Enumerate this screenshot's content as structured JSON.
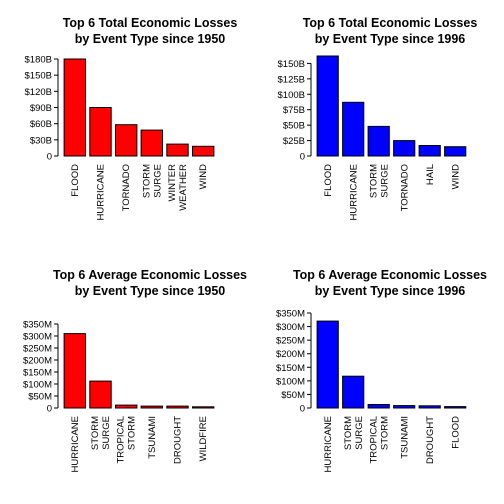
{
  "chart_data": [
    {
      "type": "bar",
      "title": [
        "Top 6 Total Economic Losses",
        "by Event Type since 1950"
      ],
      "categories": [
        [
          "FLOOD"
        ],
        [
          "HURRICANE"
        ],
        [
          "TORNADO"
        ],
        [
          "STORM",
          "SURGE"
        ],
        [
          "WINTER",
          "WEATHER"
        ],
        [
          "WIND"
        ]
      ],
      "values": [
        180,
        90,
        58,
        48,
        22,
        18
      ],
      "unit_suffix": "B",
      "prefix": "$",
      "yticks": [
        0,
        30,
        60,
        90,
        120,
        150,
        180
      ],
      "ylim": [
        0,
        180
      ],
      "color": "#ff0000"
    },
    {
      "type": "bar",
      "title": [
        "Top 6 Total Economic Losses",
        "by Event Type since 1996"
      ],
      "categories": [
        [
          "FLOOD"
        ],
        [
          "HURRICANE"
        ],
        [
          "STORM",
          "SURGE"
        ],
        [
          "TORNADO"
        ],
        [
          "HAIL"
        ],
        [
          "WIND"
        ]
      ],
      "values": [
        162,
        87,
        48,
        25,
        17,
        15
      ],
      "unit_suffix": "B",
      "prefix": "$",
      "yticks": [
        0,
        25,
        50,
        75,
        100,
        125,
        150
      ],
      "ylim": [
        0,
        162
      ],
      "color": "#0000ff"
    },
    {
      "type": "bar",
      "title": [
        "Top 6 Average Economic Losses",
        "by Event Type since 1950"
      ],
      "categories": [
        [
          "HURRICANE"
        ],
        [
          "STORM",
          "SURGE"
        ],
        [
          "TROPICAL",
          "STORM"
        ],
        [
          "TSUNAMI"
        ],
        [
          "DROUGHT"
        ],
        [
          "WILDFIRE"
        ]
      ],
      "values": [
        310,
        112,
        12,
        8,
        8,
        5
      ],
      "unit_suffix": "M",
      "prefix": "$",
      "yticks": [
        0,
        50,
        100,
        150,
        200,
        250,
        300,
        350
      ],
      "ylim": [
        0,
        350
      ],
      "color": "#ff0000"
    },
    {
      "type": "bar",
      "title": [
        "Top 6 Average Economic Losses",
        "by Event Type since 1996"
      ],
      "categories": [
        [
          "HURRICANE"
        ],
        [
          "STORM",
          "SURGE"
        ],
        [
          "TROPICAL",
          "STORM"
        ],
        [
          "TSUNAMI"
        ],
        [
          "DROUGHT"
        ],
        [
          "FLOOD"
        ]
      ],
      "values": [
        320,
        117,
        13,
        9,
        8,
        5
      ],
      "unit_suffix": "M",
      "prefix": "$",
      "yticks": [
        0,
        50,
        100,
        150,
        200,
        250,
        300,
        350
      ],
      "ylim": [
        0,
        350
      ],
      "color": "#0000ff"
    }
  ]
}
